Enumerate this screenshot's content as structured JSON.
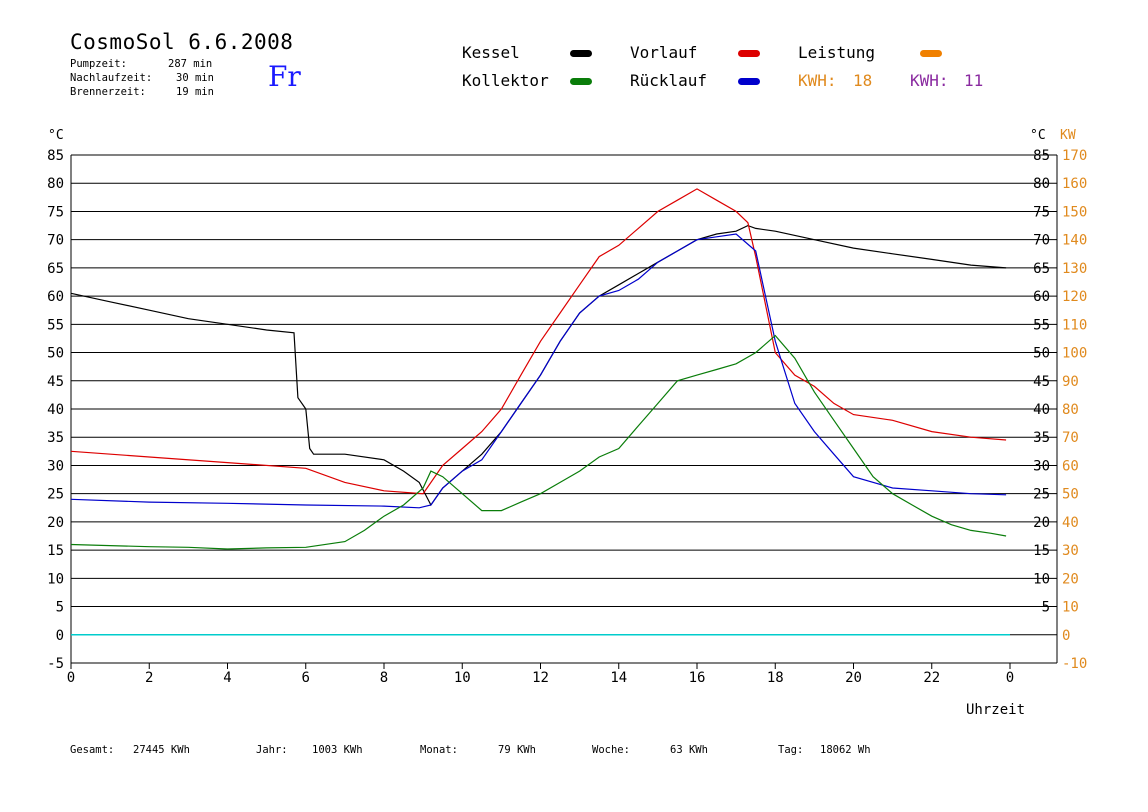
{
  "header": {
    "title": "CosmoSol 6.6.2008",
    "day": "Fr",
    "pump_label": "Pumpzeit:",
    "pump_value": "287 min",
    "nachlauf_label": "Nachlaufzeit:",
    "nachlauf_value": "30 min",
    "brenner_label": "Brennerzeit:",
    "brenner_value": "19 min"
  },
  "legend": {
    "kessel": "Kessel",
    "kollektor": "Kollektor",
    "vorlauf": "Vorlauf",
    "ruecklauf": "Rücklauf",
    "leistung": "Leistung",
    "kwh1_label": "KWH:",
    "kwh1_value": "18",
    "kwh2_label": "KWH:",
    "kwh2_value": "11"
  },
  "colors": {
    "kessel": "#000000",
    "kollektor": "#0a7d0a",
    "vorlauf": "#dd0000",
    "ruecklauf": "#0000cc",
    "leistung": "#f08000",
    "kwh2": "#8a2aa0",
    "cyan": "#00cccc",
    "orange_axis": "#e08a1e"
  },
  "footer": {
    "gesamt_label": "Gesamt:",
    "gesamt_value": "27445 KWh",
    "jahr_label": "Jahr:",
    "jahr_value": "1003 KWh",
    "monat_label": "Monat:",
    "monat_value": "79 KWh",
    "woche_label": "Woche:",
    "woche_value": "63 KWh",
    "tag_label": "Tag:",
    "tag_value": "18062 Wh"
  },
  "chart_data": {
    "type": "line",
    "xlabel": "Uhrzeit",
    "ylabel_left": "°C",
    "ylabel_right_temp": "°C",
    "ylabel_right_power": "KW",
    "xlim": [
      0,
      24
    ],
    "ylim": [
      -5,
      85
    ],
    "ylim_power": [
      -10,
      170
    ],
    "grid": true,
    "x_ticks": [
      "0",
      "2",
      "4",
      "6",
      "8",
      "10",
      "12",
      "14",
      "16",
      "18",
      "20",
      "22",
      "0"
    ],
    "y_ticks_left": [
      "85",
      "80",
      "75",
      "70",
      "65",
      "60",
      "55",
      "50",
      "45",
      "40",
      "35",
      "30",
      "25",
      "20",
      "15",
      "10",
      "5",
      "0",
      "-5"
    ],
    "y_ticks_right": [
      "85",
      "80",
      "75",
      "70",
      "65",
      "60",
      "55",
      "50",
      "45",
      "40",
      "35",
      "30",
      "25",
      "20",
      "15",
      "10",
      "5"
    ],
    "y_ticks_power": [
      "170",
      "160",
      "150",
      "140",
      "130",
      "120",
      "110",
      "100",
      "90",
      "80",
      "70",
      "60",
      "50",
      "40",
      "30",
      "20",
      "10",
      "0",
      "-10"
    ],
    "series": [
      {
        "name": "Kessel",
        "color": "#000000",
        "x": [
          0,
          1,
          2,
          3,
          4,
          5,
          5.7,
          5.8,
          6.0,
          6.1,
          6.2,
          7,
          8,
          8.5,
          8.9,
          9.2,
          9.5,
          10,
          10.5,
          11,
          11.5,
          12,
          12.5,
          13,
          13.5,
          14,
          14.5,
          15,
          15.5,
          16,
          16.5,
          17,
          17.3,
          17.5,
          18,
          19,
          20,
          21,
          22,
          23,
          23.9
        ],
        "y": [
          60.5,
          59,
          57.5,
          56,
          55,
          54,
          53.5,
          42,
          40,
          33,
          32,
          32,
          31,
          29,
          27,
          23,
          26,
          29,
          32,
          36,
          41,
          46,
          52,
          57,
          60,
          62,
          64,
          66,
          68,
          70,
          71,
          71.5,
          72.5,
          72,
          71.5,
          70,
          68.5,
          67.5,
          66.5,
          65.5,
          65
        ]
      },
      {
        "name": "Vorlauf",
        "color": "#dd0000",
        "x": [
          0,
          2,
          4,
          6,
          7,
          8,
          9,
          9.5,
          10,
          10.5,
          11,
          11.5,
          12,
          12.5,
          13,
          13.5,
          14,
          14.5,
          15,
          15.5,
          16,
          16.5,
          17,
          17.3,
          17.5,
          18,
          18.5,
          19,
          19.5,
          20,
          21,
          22,
          23,
          23.9
        ],
        "y": [
          32.5,
          31.5,
          30.5,
          29.5,
          27,
          25.5,
          25,
          30,
          33,
          36,
          40,
          46,
          52,
          57,
          62,
          67,
          69,
          72,
          75,
          77,
          79,
          77,
          75,
          73,
          67,
          50,
          46,
          44,
          41,
          39,
          38,
          36,
          35,
          34.5
        ]
      },
      {
        "name": "Rücklauf",
        "color": "#0000cc",
        "x": [
          0,
          2,
          4,
          6,
          8,
          8.9,
          9.2,
          9.5,
          10,
          10.5,
          11,
          11.5,
          12,
          12.5,
          13,
          13.5,
          14,
          14.5,
          15,
          15.5,
          16,
          16.5,
          17,
          17.5,
          18,
          18.5,
          19,
          19.5,
          20,
          21,
          22,
          23,
          23.9
        ],
        "y": [
          24,
          23.5,
          23.3,
          23,
          22.8,
          22.5,
          23,
          26,
          29,
          31,
          36,
          41,
          46,
          52,
          57,
          60,
          61,
          63,
          66,
          68,
          70,
          70.5,
          71,
          68,
          52,
          41,
          36,
          32,
          28,
          26,
          25.5,
          25,
          24.8
        ]
      },
      {
        "name": "Kollektor",
        "color": "#0a7d0a",
        "x": [
          0,
          1,
          2,
          3,
          4,
          5,
          6,
          7,
          7.5,
          8,
          8.5,
          9,
          9.2,
          9.5,
          10,
          10.5,
          11,
          11.5,
          12,
          12.5,
          13,
          13.5,
          14,
          14.5,
          15,
          15.5,
          16,
          16.5,
          17,
          17.5,
          18,
          18.5,
          19,
          19.5,
          20,
          20.5,
          21,
          21.5,
          22,
          22.5,
          23,
          23.5,
          23.9
        ],
        "y": [
          16,
          15.8,
          15.6,
          15.5,
          15.2,
          15.4,
          15.5,
          16.5,
          18.5,
          21,
          23,
          26,
          29,
          28,
          25,
          22,
          22,
          23.5,
          25,
          27,
          29,
          31.5,
          33,
          37,
          41,
          45,
          46,
          47,
          48,
          50,
          53,
          49,
          43,
          38,
          33,
          28,
          25,
          23,
          21,
          19.5,
          18.5,
          18,
          17.5
        ]
      }
    ],
    "power_series": [
      {
        "name": "Leistung",
        "color": "#f08000"
      },
      {
        "name": "KWH",
        "color": "#8a2aa0"
      }
    ]
  }
}
